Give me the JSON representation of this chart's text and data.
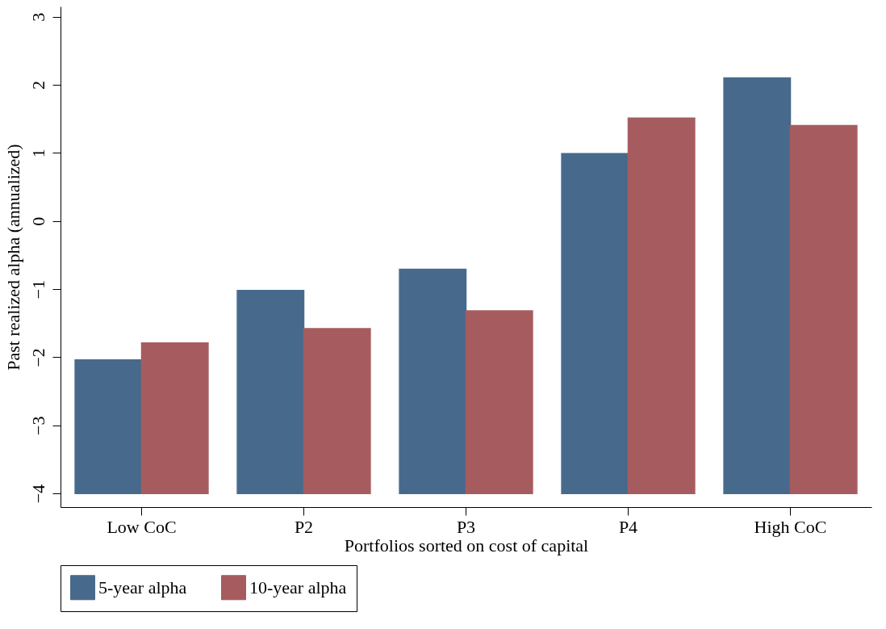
{
  "chart_data": {
    "type": "bar",
    "xlabel": "Portfolios sorted on cost of capital",
    "ylabel": "Past realized alpha (annualized)",
    "categories": [
      "Low CoC",
      "P2",
      "P3",
      "P4",
      "High CoC"
    ],
    "series": [
      {
        "name": "5-year alpha",
        "color": "#476a8c",
        "base": [
          -4,
          -4,
          -4,
          -4,
          -4
        ],
        "values": [
          1.96,
          2.98,
          3.29,
          4.99,
          6.1
        ]
      },
      {
        "name": "10-year alpha",
        "color": "#a65c5f",
        "base": [
          -4,
          -4,
          -4,
          -4,
          -4
        ],
        "values": [
          2.21,
          2.42,
          2.68,
          5.51,
          5.4
        ]
      }
    ],
    "ylim": [
      -4.2,
      3.15
    ],
    "yticks": [
      -4,
      -3,
      -2,
      -1,
      0,
      1,
      2,
      3
    ],
    "grid": false,
    "legend": "bottom"
  }
}
